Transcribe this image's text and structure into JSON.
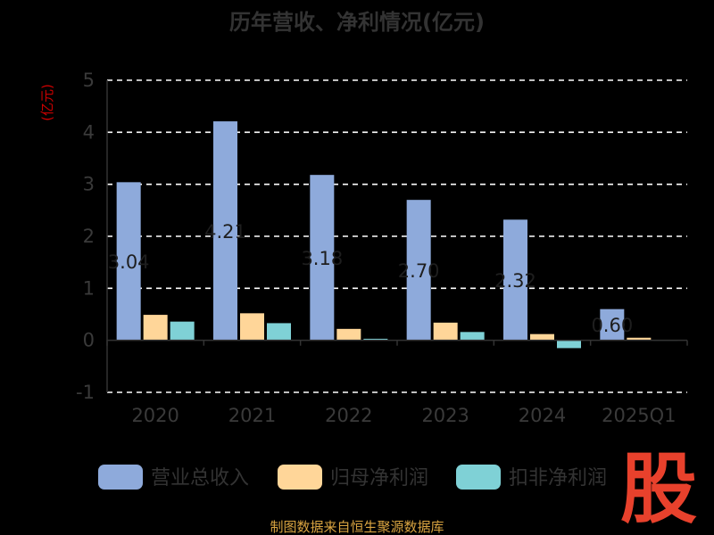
{
  "chart_data": {
    "type": "bar",
    "title": "历年营收、净利情况(亿元)",
    "ylabel": "(亿元)",
    "xlabel": "",
    "categories": [
      "2020",
      "2021",
      "2022",
      "2023",
      "2024",
      "2025Q1"
    ],
    "ylim": [
      -1,
      5
    ],
    "yticks": [
      -1,
      0,
      1,
      2,
      3,
      4,
      5
    ],
    "grid": true,
    "legend_position": "bottom",
    "series": [
      {
        "name": "营业总收入",
        "color": "#8eaadb",
        "values": [
          3.04,
          4.21,
          3.18,
          2.7,
          2.32,
          0.6
        ],
        "labels": [
          "3.04",
          "4.21",
          "3.18",
          "2.70",
          "2.32",
          "0.60"
        ]
      },
      {
        "name": "归母净利润",
        "color": "#ffd699",
        "values": [
          0.49,
          0.52,
          0.22,
          0.34,
          0.12,
          0.05
        ]
      },
      {
        "name": "扣非净利润",
        "color": "#7fd1d6",
        "values": [
          0.36,
          0.33,
          0.03,
          0.16,
          -0.15,
          0.01
        ]
      }
    ]
  },
  "footer": {
    "source": "制图数据来自恒生聚源数据库",
    "watermark": "股"
  }
}
